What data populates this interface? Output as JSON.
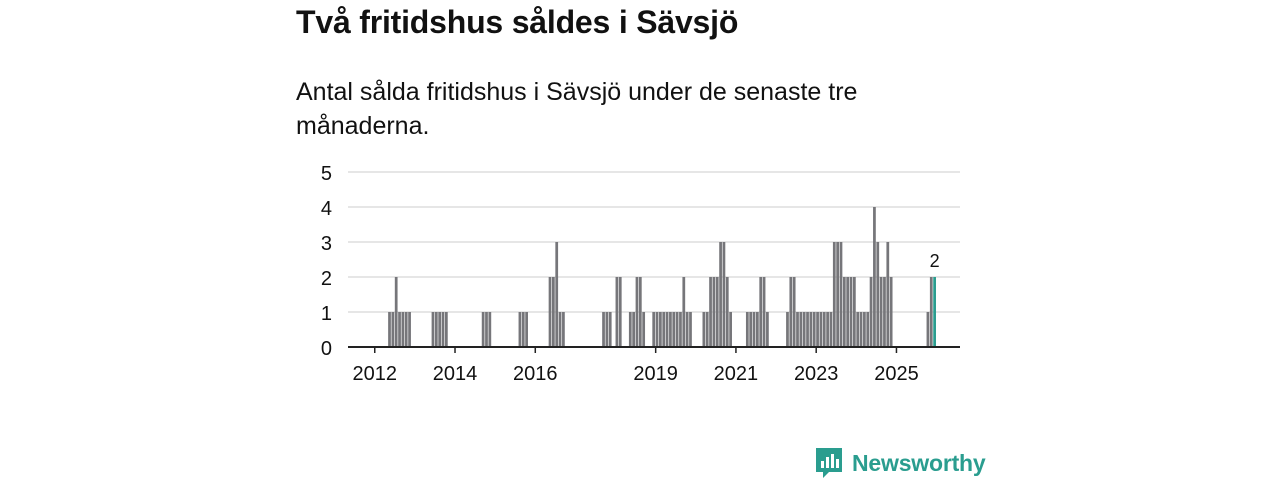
{
  "header": {
    "title": "Två fritidshus såldes i Sävsjö",
    "subtitle": "Antal sålda fritidshus i Sävsjö under de senaste tre månaderna."
  },
  "brand": {
    "name": "Newsworthy",
    "icon": "newsworthy-logo-icon"
  },
  "colors": {
    "bar": "#76767a",
    "highlight": "#2a9d8f",
    "grid": "#dddddd",
    "axis": "#222222",
    "brand": "#2a9d8f"
  },
  "chart_data": {
    "type": "bar",
    "title": "Två fritidshus såldes i Sävsjö",
    "xlabel": "",
    "ylabel": "",
    "ylim": [
      0,
      5
    ],
    "yticks": [
      0,
      1,
      2,
      3,
      4,
      5
    ],
    "x_tick_labels": [
      "2012",
      "2014",
      "2016",
      "2019",
      "2021",
      "2023",
      "2025"
    ],
    "x_tick_months": [
      0,
      24,
      48,
      84,
      108,
      132,
      156
    ],
    "x_month_range": [
      -8,
      175
    ],
    "start_month_note": "month index 0 = start of 2012, monthly bars",
    "values_by_month": {
      "4": 1,
      "5": 1,
      "6": 2,
      "7": 1,
      "8": 1,
      "9": 1,
      "10": 1,
      "17": 1,
      "18": 1,
      "19": 1,
      "20": 1,
      "21": 1,
      "32": 1,
      "33": 1,
      "34": 1,
      "43": 1,
      "44": 1,
      "45": 1,
      "52": 2,
      "53": 2,
      "54": 3,
      "55": 1,
      "56": 1,
      "68": 1,
      "69": 1,
      "70": 1,
      "72": 2,
      "73": 2,
      "76": 1,
      "77": 1,
      "78": 2,
      "79": 2,
      "80": 1,
      "83": 1,
      "84": 1,
      "85": 1,
      "86": 1,
      "87": 1,
      "88": 1,
      "89": 1,
      "90": 1,
      "91": 1,
      "92": 2,
      "93": 1,
      "94": 1,
      "98": 1,
      "99": 1,
      "100": 2,
      "101": 2,
      "102": 2,
      "103": 3,
      "104": 3,
      "105": 2,
      "106": 1,
      "111": 1,
      "112": 1,
      "113": 1,
      "114": 1,
      "115": 2,
      "116": 2,
      "117": 1,
      "123": 1,
      "124": 2,
      "125": 2,
      "126": 1,
      "127": 1,
      "128": 1,
      "129": 1,
      "130": 1,
      "131": 1,
      "132": 1,
      "133": 1,
      "134": 1,
      "135": 1,
      "136": 1,
      "137": 3,
      "138": 3,
      "139": 3,
      "140": 2,
      "141": 2,
      "142": 2,
      "143": 2,
      "144": 1,
      "145": 1,
      "146": 1,
      "147": 1,
      "148": 2,
      "149": 4,
      "150": 3,
      "151": 2,
      "152": 2,
      "153": 3,
      "154": 2,
      "165": 1,
      "166": 2
    },
    "highlight": {
      "month": 167,
      "value": 2,
      "label": "2"
    }
  }
}
